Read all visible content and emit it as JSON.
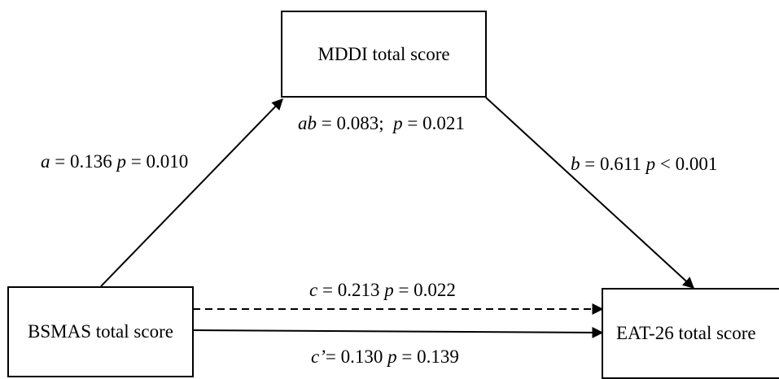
{
  "nodes": {
    "mediator": "MDDI total score",
    "predictor": "BSMAS total score",
    "outcome": "EAT-26 total score"
  },
  "paths": {
    "a": {
      "sym": "a",
      "coef": " = 0.136 ",
      "psym": "p",
      "pval": " = 0.010"
    },
    "b": {
      "sym": "b",
      "coef": " = 0.611 ",
      "psym": "p",
      "pval": " < 0.001"
    },
    "ab": {
      "sym": "ab",
      "coef": " = 0.083;  ",
      "psym": "p",
      "pval": " = 0.021"
    },
    "c": {
      "sym": "c",
      "coef": " = 0.213 ",
      "psym": "p",
      "pval": " = 0.022"
    },
    "c_prime": {
      "sym": "c’",
      "coef": "= 0.130 ",
      "psym": "p",
      "pval": " = 0.139"
    }
  }
}
